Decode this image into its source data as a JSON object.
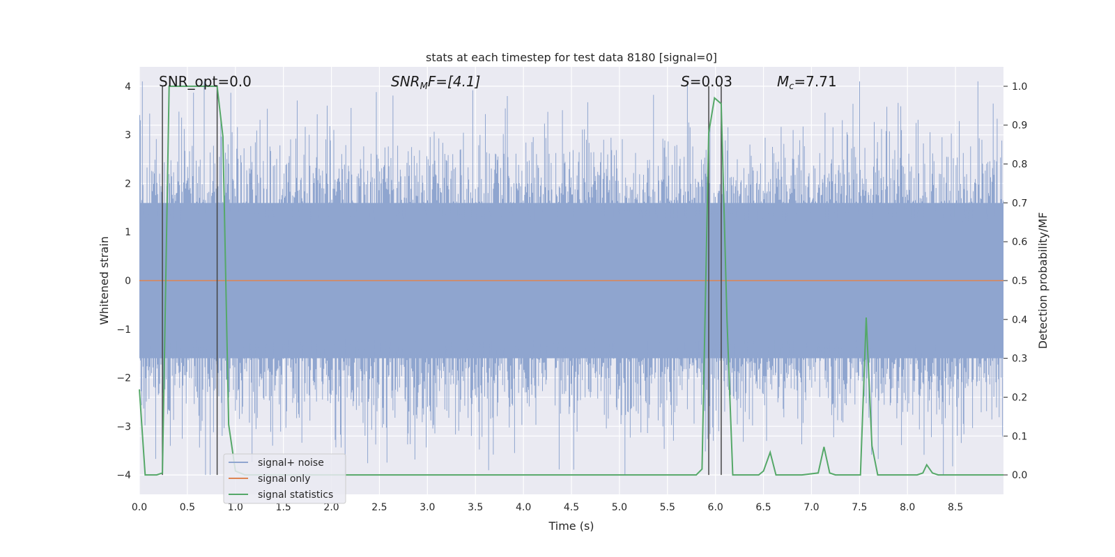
{
  "chart_data": {
    "type": "line",
    "title": "stats at each timestep for test data 8180 [signal=0]",
    "xlabel": "Time (s)",
    "ylabel_left": "Whitened strain",
    "ylabel_right": "Detection probability/MF",
    "xlim": [
      0,
      9.0
    ],
    "ylim_left": [
      -4.4,
      4.4
    ],
    "ylim_right": [
      -0.05,
      1.05
    ],
    "x_ticks": [
      "0.0",
      "0.5",
      "1.0",
      "1.5",
      "2.0",
      "2.5",
      "3.0",
      "3.5",
      "4.0",
      "4.5",
      "5.0",
      "5.5",
      "6.0",
      "6.5",
      "7.0",
      "7.5",
      "8.0",
      "8.5"
    ],
    "x_tick_values": [
      0,
      0.5,
      1,
      1.5,
      2,
      2.5,
      3,
      3.5,
      4,
      4.5,
      5,
      5.5,
      6,
      6.5,
      7,
      7.5,
      8,
      8.5
    ],
    "y_left_ticks": [
      "4",
      "3",
      "2",
      "1",
      "0",
      "−1",
      "−2",
      "−3",
      "−4"
    ],
    "y_left_tick_values": [
      4,
      3,
      2,
      1,
      0,
      -1,
      -2,
      -3,
      -4
    ],
    "y_right_ticks": [
      "1.0",
      "0.9",
      "0.8",
      "0.7",
      "0.6",
      "0.5",
      "0.4",
      "0.3",
      "0.2",
      "0.1",
      "0.0"
    ],
    "y_right_tick_values": [
      1.0,
      0.9,
      0.8,
      0.7,
      0.6,
      0.5,
      0.4,
      0.3,
      0.2,
      0.1,
      0.0
    ],
    "grid": true,
    "legend_position": "lower-left",
    "annotations": {
      "snr_opt": "SNR_opt=0.0",
      "snr_mf_main": "SNR",
      "snr_mf_sub": "M",
      "snr_mf_rest": "F=[4.1]",
      "s_main": "S",
      "s_rest": "=0.03",
      "mc_main": "M",
      "mc_sub": "c",
      "mc_rest": "=7.71"
    },
    "vertical_lines_x": [
      0.24,
      0.81,
      5.93,
      6.06
    ],
    "series": [
      {
        "name": "signal+ noise",
        "color": "#8fa5cf",
        "axis": "left",
        "description_values": {
          "band_upper": 1.6,
          "band_lower": -1.6,
          "spike_max": 4.1,
          "spike_min": -4.0
        }
      },
      {
        "name": "signal only",
        "color": "#dd8452",
        "axis": "left",
        "values_constant": 0
      },
      {
        "name": "signal statistics",
        "color": "#55a868",
        "axis": "right",
        "x": [
          0.0,
          0.06,
          0.18,
          0.24,
          0.31,
          0.45,
          0.6,
          0.75,
          0.81,
          0.87,
          0.93,
          1.0,
          1.1,
          1.3,
          1.6,
          2.0,
          3.0,
          4.0,
          5.0,
          5.5,
          5.8,
          5.86,
          5.93,
          5.99,
          6.06,
          6.12,
          6.18,
          6.3,
          6.45,
          6.5,
          6.57,
          6.63,
          6.75,
          6.9,
          7.07,
          7.13,
          7.19,
          7.25,
          7.4,
          7.51,
          7.57,
          7.63,
          7.69,
          7.8,
          8.0,
          8.1,
          8.16,
          8.2,
          8.26,
          8.32,
          8.5,
          8.7,
          9.0
        ],
        "y": [
          0.22,
          0.0,
          0.0,
          0.005,
          1.0,
          1.0,
          1.0,
          1.0,
          1.0,
          0.87,
          0.13,
          0.01,
          0.0,
          0.0,
          0.0,
          0.0,
          0.0,
          0.0,
          0.0,
          0.0,
          0.0,
          0.015,
          0.88,
          0.97,
          0.955,
          0.4,
          0.0,
          0.0,
          0.0,
          0.01,
          0.058,
          0.0,
          0.0,
          0.0,
          0.005,
          0.072,
          0.005,
          0.0,
          0.0,
          0.0,
          0.405,
          0.075,
          0.0,
          0.0,
          0.0,
          0.0,
          0.005,
          0.026,
          0.005,
          0.0,
          0.0,
          0.0,
          0.0
        ]
      }
    ]
  }
}
